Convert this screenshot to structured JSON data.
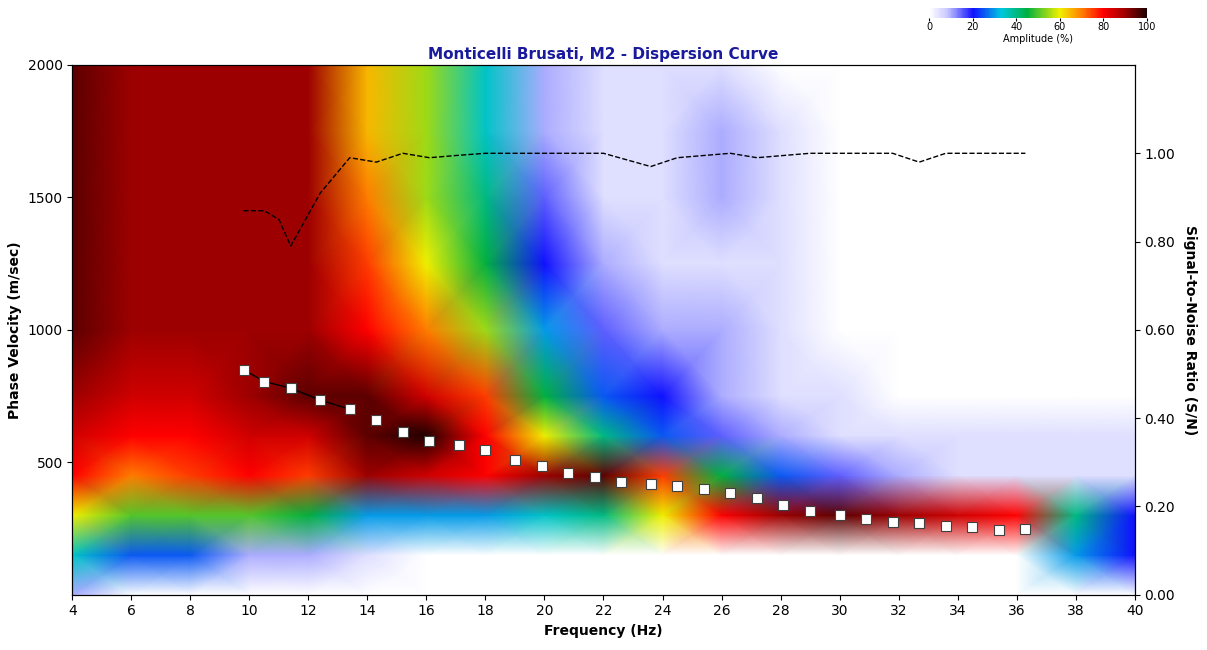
{
  "chart_data": {
    "type": "heatmap",
    "title": "Monticelli Brusati, M2 - Dispersion Curve",
    "x_label": "Frequency (Hz)",
    "y_label": "Phase Velocity (m/sec)",
    "y2_label": "Signal-to-Noise Ratio (S/N)",
    "xlim": [
      4,
      40
    ],
    "xticks": [
      4,
      6,
      8,
      10,
      12,
      14,
      16,
      18,
      20,
      22,
      24,
      26,
      28,
      30,
      32,
      34,
      36,
      38,
      40
    ],
    "ylim": [
      0,
      2000
    ],
    "yticks": [
      500,
      1000,
      1500,
      2000
    ],
    "y2lim": [
      0,
      1.2
    ],
    "y2ticks": [
      {
        "value": 0,
        "label": "0.00"
      },
      {
        "value": 0.2,
        "label": "0.20"
      },
      {
        "value": 0.4,
        "label": "0.40"
      },
      {
        "value": 0.6,
        "label": "0.60"
      },
      {
        "value": 0.8,
        "label": "0.80"
      },
      {
        "value": 1.0,
        "label": "1.00"
      }
    ],
    "heatmap": {
      "x": [
        4,
        6,
        8,
        10,
        12,
        14,
        16,
        18,
        20,
        22,
        24,
        26,
        28,
        30,
        32,
        34,
        36,
        38,
        40
      ],
      "y": [
        0,
        150,
        300,
        450,
        600,
        750,
        1000,
        1250,
        1500,
        1750,
        2000
      ],
      "cells": [
        [
          10,
          0,
          0,
          0,
          0,
          0,
          0,
          0,
          0,
          0,
          0,
          0,
          0,
          0,
          0,
          0,
          0,
          0,
          0
        ],
        [
          35,
          25,
          25,
          10,
          10,
          5,
          0,
          0,
          0,
          0,
          0,
          0,
          0,
          0,
          0,
          0,
          0,
          30,
          20
        ],
        [
          60,
          50,
          50,
          50,
          45,
          30,
          30,
          30,
          35,
          40,
          60,
          80,
          90,
          95,
          90,
          85,
          80,
          40,
          20
        ],
        [
          80,
          70,
          75,
          80,
          75,
          90,
          85,
          80,
          90,
          95,
          75,
          45,
          25,
          15,
          10,
          5,
          5,
          5,
          5
        ],
        [
          85,
          80,
          80,
          85,
          85,
          95,
          100,
          80,
          60,
          40,
          25,
          15,
          10,
          5,
          5,
          5,
          5,
          5,
          5
        ],
        [
          90,
          85,
          85,
          90,
          95,
          95,
          85,
          75,
          45,
          25,
          20,
          10,
          5,
          5,
          0,
          0,
          0,
          0,
          0
        ],
        [
          95,
          90,
          90,
          90,
          90,
          80,
          70,
          55,
          30,
          15,
          10,
          10,
          5,
          0,
          0,
          0,
          0,
          0,
          0
        ],
        [
          95,
          90,
          90,
          90,
          90,
          75,
          60,
          45,
          20,
          10,
          5,
          5,
          5,
          0,
          0,
          0,
          0,
          0,
          0
        ],
        [
          95,
          90,
          90,
          90,
          90,
          70,
          55,
          40,
          15,
          5,
          5,
          10,
          5,
          0,
          0,
          0,
          0,
          0,
          0
        ],
        [
          95,
          90,
          90,
          90,
          90,
          65,
          55,
          35,
          10,
          5,
          5,
          10,
          5,
          0,
          0,
          0,
          0,
          0,
          0
        ],
        [
          95,
          90,
          90,
          90,
          90,
          65,
          55,
          35,
          10,
          5,
          5,
          5,
          0,
          0,
          0,
          0,
          0,
          0,
          0
        ]
      ],
      "clim": [
        0,
        100
      ],
      "cticks": [
        0,
        20,
        40,
        60,
        80,
        100
      ],
      "clabel": "Amplitude (%)"
    },
    "series": [
      {
        "type": "line",
        "color": "#000000",
        "marker": "square",
        "line_style": "solid",
        "x": [
          9.8,
          10.5,
          11.4,
          12.4,
          13.4
        ],
        "values": [
          850,
          805,
          780,
          735,
          700
        ]
      },
      {
        "type": "scatter",
        "color": "#000000",
        "marker": "square",
        "line_style": "none",
        "x": [
          14.3,
          15.2,
          16.1,
          17.1,
          18.0,
          19.0,
          19.9,
          20.8,
          21.7,
          22.6,
          23.6,
          24.5,
          25.4,
          26.3,
          27.2,
          28.1,
          29.0,
          30.0,
          30.9,
          31.8,
          32.7,
          33.6,
          34.5,
          35.4,
          36.3
        ],
        "values": [
          660,
          615,
          580,
          565,
          545,
          510,
          485,
          460,
          445,
          425,
          420,
          410,
          400,
          385,
          365,
          340,
          315,
          300,
          285,
          275,
          270,
          260,
          255,
          245,
          250
        ]
      },
      {
        "type": "line",
        "axis": "y2",
        "color": "#000000",
        "line_style": "dashed",
        "x": [
          9.8,
          10.5,
          11.0,
          11.4,
          12.4,
          13.4,
          14.3,
          15.2,
          16.1,
          17.0,
          18.0,
          19.0,
          20.0,
          21.0,
          22.0,
          23.6,
          24.5,
          26.3,
          27.2,
          28.1,
          29.0,
          31.8,
          32.7,
          33.6,
          36.3
        ],
        "values": [
          0.87,
          0.87,
          0.85,
          0.79,
          0.91,
          0.99,
          0.98,
          1.0,
          0.99,
          0.995,
          1.0,
          1.0,
          1.0,
          1.0,
          1.0,
          0.97,
          0.99,
          1.0,
          0.99,
          0.995,
          1.0,
          1.0,
          0.98,
          1.0,
          1.0
        ]
      }
    ]
  }
}
